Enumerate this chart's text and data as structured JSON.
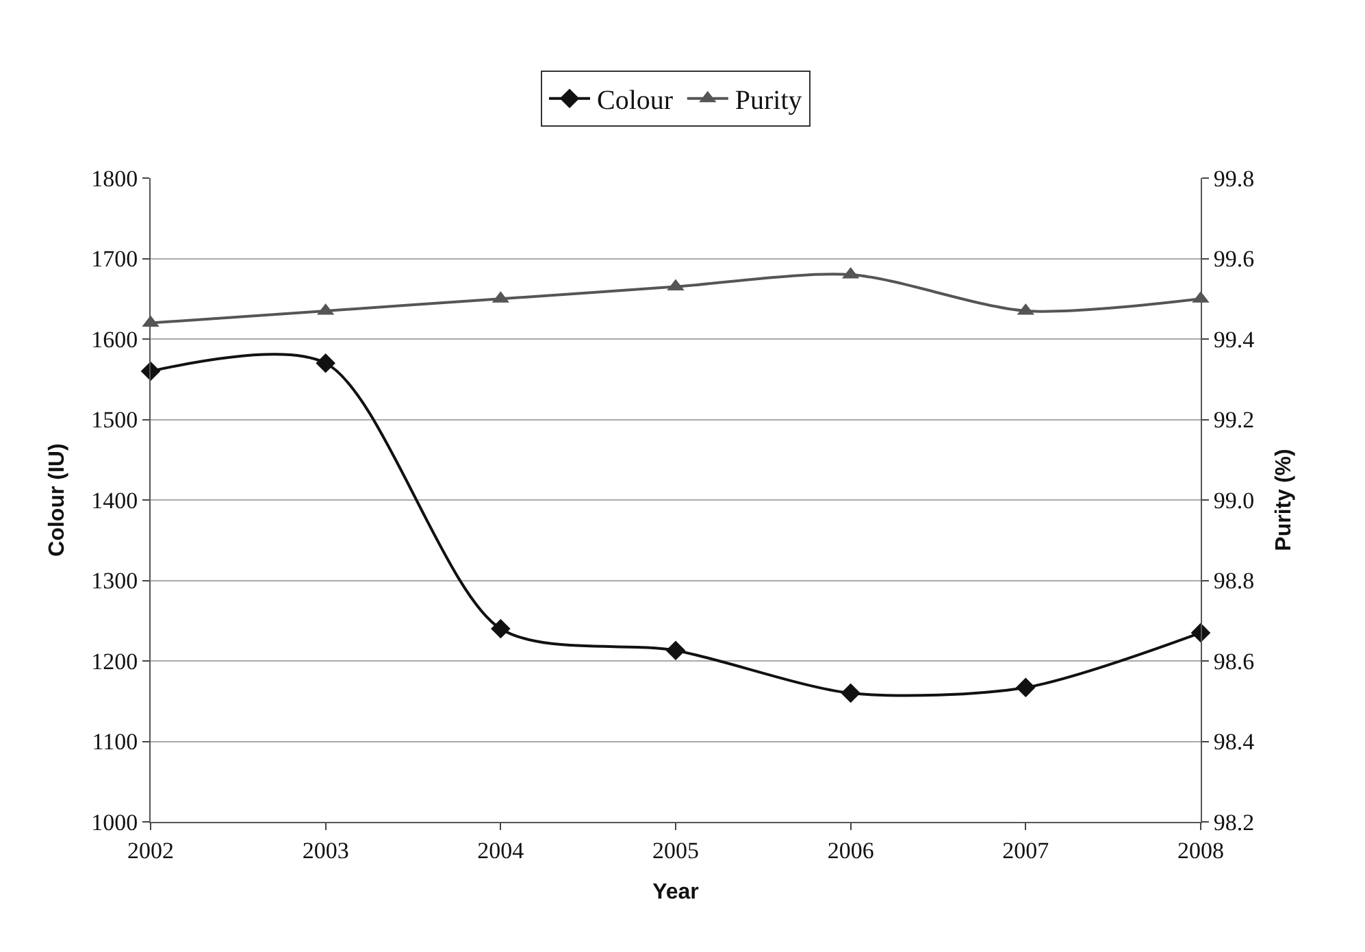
{
  "chart_data": {
    "type": "line",
    "xlabel": "Year",
    "ylabel": "Colour (IU)",
    "y2label": "Purity (%)",
    "x": [
      2002,
      2003,
      2004,
      2005,
      2006,
      2007,
      2008
    ],
    "xlim": [
      2002,
      2008
    ],
    "xticks": [
      2002,
      2003,
      2004,
      2005,
      2006,
      2007,
      2008
    ],
    "ylim": [
      1000,
      1800
    ],
    "yticks": [
      1000,
      1100,
      1200,
      1300,
      1400,
      1500,
      1600,
      1700,
      1800
    ],
    "y2lim": [
      98.2,
      99.8
    ],
    "y2ticks": [
      {
        "value": 98.2,
        "label": "98.2"
      },
      {
        "value": 98.4,
        "label": "98.4"
      },
      {
        "value": 98.6,
        "label": "98.6"
      },
      {
        "value": 98.8,
        "label": "98.8"
      },
      {
        "value": 99.0,
        "label": "99.0"
      },
      {
        "value": 99.2,
        "label": "99.2"
      },
      {
        "value": 99.4,
        "label": "99.4"
      },
      {
        "value": 99.6,
        "label": "99.6"
      },
      {
        "value": 99.8,
        "label": "99.8"
      }
    ],
    "series": [
      {
        "name": "Colour",
        "color": "#111111",
        "marker": "diamond",
        "values": [
          1560,
          1570,
          1240,
          1213,
          1160,
          1167,
          1235
        ]
      },
      {
        "name": "Purity",
        "color": "#555555",
        "marker": "triangle",
        "axis": "y2",
        "values": [
          99.44,
          99.47,
          99.5,
          99.53,
          99.56,
          99.47,
          99.5
        ]
      }
    ],
    "grid": "y",
    "legend": "top",
    "line_style": "solid"
  }
}
